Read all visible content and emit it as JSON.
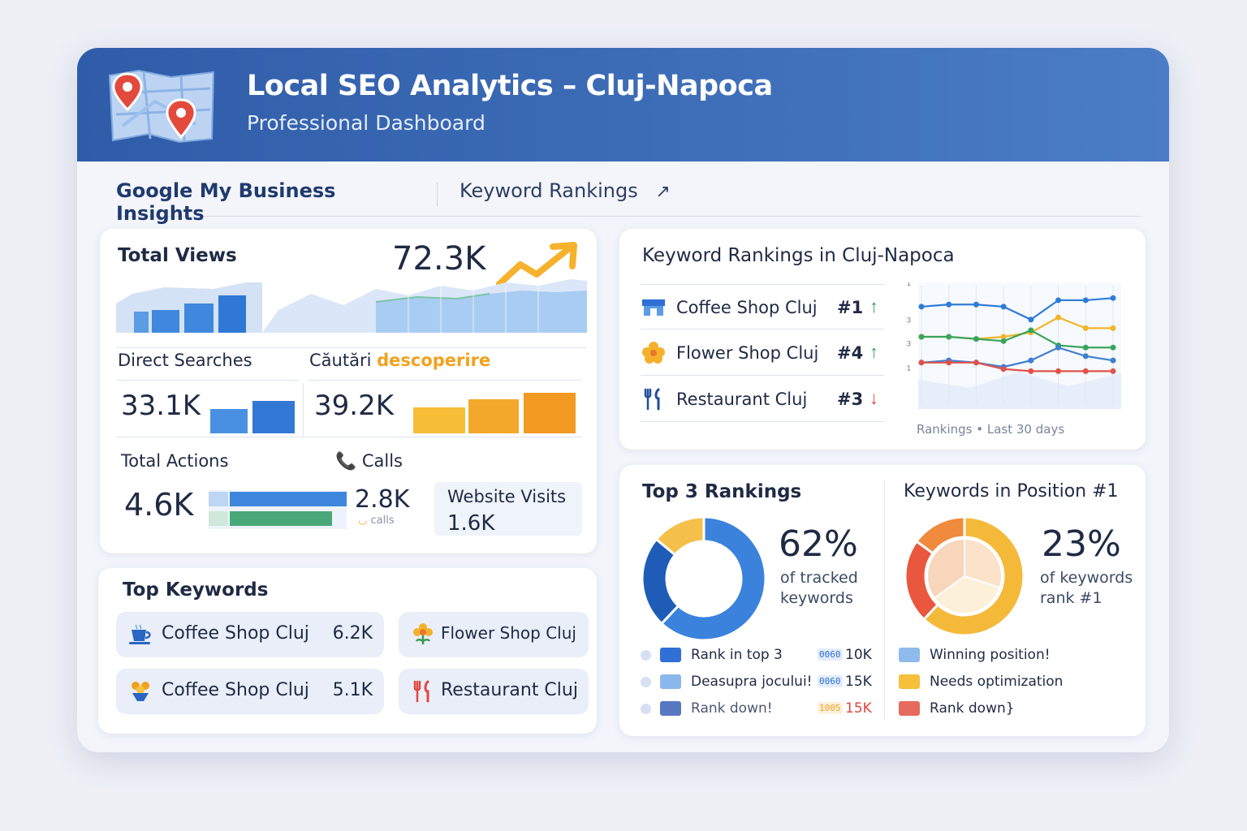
{
  "header": {
    "title": "Local SEO Analytics – Cluj-Napoca",
    "subtitle": "Professional Dashboard"
  },
  "tabs": [
    {
      "label": "Google My  Business Insights",
      "active": true
    },
    {
      "label": "Keyword Rankings",
      "icon": "external-arrow-icon"
    }
  ],
  "gmb": {
    "total_views": {
      "label": "Total Views",
      "value": "72.3K"
    },
    "direct_searches": {
      "label": "Direct Searches",
      "value": "33.1K"
    },
    "discovery_searches": {
      "label_prefix": "Căutări",
      "label_accent": "descoperire",
      "value": "39.2K"
    },
    "total_actions": {
      "label": "Total Actions",
      "value": "4.6K"
    },
    "calls": {
      "label": "Calls",
      "value": "2.8K",
      "unit": "calls"
    },
    "website_visits": {
      "label": "Website Visits",
      "value": "1.6K"
    }
  },
  "top_keywords": {
    "title": "Top Keywords",
    "items": [
      {
        "name": "Coffee Shop Cluj",
        "value": "6.2K",
        "icon": "coffee-cup-icon"
      },
      {
        "name": "Flower Shop Cluj",
        "value": "",
        "icon": "flower-icon"
      },
      {
        "name": "Coffee Shop Cluj",
        "value": "5.1K",
        "icon": "flower-bouquet-icon"
      },
      {
        "name": "Restaurant Cluj",
        "value": "",
        "icon": "utensils-icon"
      }
    ]
  },
  "keyword_rankings": {
    "title": "Keyword Rankings in Cluj-Napoca",
    "rows": [
      {
        "name": "Coffee Shop Cluj",
        "position": "#1",
        "trend": "up",
        "icon": "store-icon"
      },
      {
        "name": "Flower Shop Cluj",
        "position": "#4",
        "trend": "up",
        "icon": "flower-icon"
      },
      {
        "name": "Restaurant Cluj",
        "position": "#3",
        "trend": "down",
        "icon": "utensils-icon"
      }
    ],
    "chart_caption": "Rankings • Last 30 days",
    "y_ticks": [
      "1",
      "3",
      "3",
      "1"
    ]
  },
  "top3": {
    "title": "Top 3 Rankings",
    "percent": "62%",
    "caption_1": "of tracked",
    "caption_2": "keywords",
    "legend": [
      {
        "label": "Rank in top 3",
        "badge": "0060",
        "value": "10K",
        "color": "#2f6fd6"
      },
      {
        "label": "Deasupra jocului!",
        "badge": "0060",
        "value": "15K",
        "color": "#8ab8ec"
      },
      {
        "label": "Rank down!",
        "badge": "1005",
        "value": "15K",
        "color": "#5878c2"
      }
    ]
  },
  "position1": {
    "title": "Keywords in Position #1",
    "percent": "23%",
    "caption_1": "of keywords",
    "caption_2": "rank #1",
    "legend": [
      {
        "label": "Winning position!",
        "color": "#8ebaec"
      },
      {
        "label": "Needs optimization",
        "color": "#f6bf3c"
      },
      {
        "label": "Rank down}",
        "color": "#e76a5e"
      }
    ]
  },
  "chart_data": [
    {
      "type": "pie",
      "title": "Top 3 Rankings",
      "values": [
        62,
        24,
        14
      ],
      "colors": [
        "#3b82dc",
        "#1e5cb8",
        "#f5c04a"
      ]
    },
    {
      "type": "pie",
      "title": "Keywords in Position #1",
      "values": [
        62,
        23,
        15
      ],
      "colors": [
        "#f5b93a",
        "#e9573f",
        "#f08a3c"
      ]
    },
    {
      "type": "line",
      "title": "Keyword Rankings in Cluj-Napoca",
      "caption": "Rankings • Last 30 days",
      "x": [
        1,
        2,
        3,
        4,
        5,
        6,
        7,
        8
      ],
      "series": [
        {
          "values": [
            1.6,
            1.5,
            1.5,
            1.6,
            2.2,
            1.3,
            1.3,
            1.2
          ],
          "color": "#2f7bd8"
        },
        {
          "values": [
            3.0,
            3.0,
            3.1,
            3.0,
            2.8,
            2.1,
            2.6,
            2.6
          ],
          "color": "#f2b52a"
        },
        {
          "values": [
            3.0,
            3.0,
            3.1,
            3.2,
            2.7,
            3.4,
            3.5,
            3.5
          ],
          "color": "#3aa45c"
        },
        {
          "values": [
            4.2,
            4.1,
            4.2,
            4.4,
            4.1,
            3.5,
            3.9,
            4.1
          ],
          "color": "#3f7fd0"
        },
        {
          "values": [
            4.2,
            4.2,
            4.2,
            4.5,
            4.6,
            4.6,
            4.6,
            4.6
          ],
          "color": "#e0524a"
        }
      ]
    }
  ]
}
